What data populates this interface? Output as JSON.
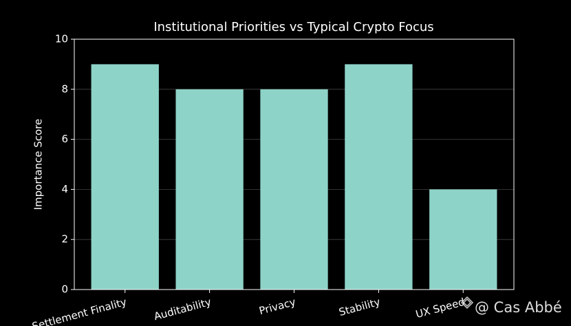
{
  "chart_data": {
    "type": "bar",
    "title": "Institutional Priorities vs Typical Crypto Focus",
    "y_label": "Importance Score",
    "categories": [
      "Settlement Finality",
      "Auditability",
      "Privacy",
      "Stability",
      "UX Speed"
    ],
    "values": [
      9,
      8,
      8,
      9,
      4
    ],
    "color": "#8dd3c7",
    "ylim": [
      0,
      10
    ],
    "yticks": [
      0,
      2,
      4,
      6,
      8,
      10
    ],
    "grid": true
  },
  "watermark": "@ Cas Abbé"
}
